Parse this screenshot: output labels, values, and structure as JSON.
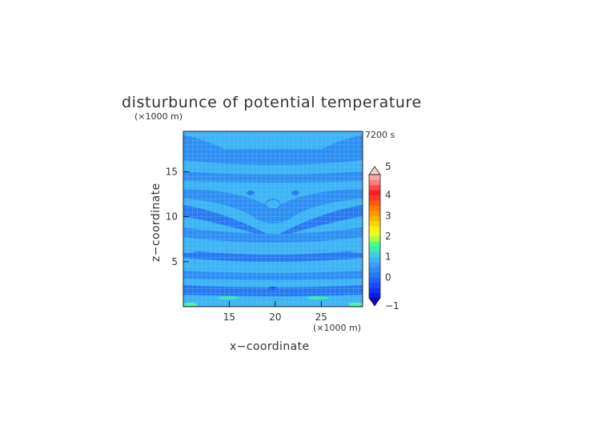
{
  "chart_data": {
    "type": "heatmap",
    "title": "disturbunce of potential temperature",
    "time_label": "7200 s",
    "xlabel": "x−coordinate",
    "ylabel": "z−coordinate",
    "x_unit": "(×1000 m)",
    "y_unit": "(×1000 m)",
    "xlim": [
      10,
      29.5
    ],
    "ylim": [
      0,
      19.5
    ],
    "x_ticks": [
      15,
      20,
      25
    ],
    "y_ticks": [
      5,
      10,
      15
    ],
    "colorbar": {
      "range": [
        -1,
        5
      ],
      "step": 0.25,
      "tick_values": [
        -1,
        0,
        1,
        2,
        3,
        4,
        5
      ],
      "tick_labels": [
        "−1",
        "0",
        "1",
        "2",
        "3",
        "4",
        "5"
      ],
      "colors": [
        "#0a1aff",
        "#1530ff",
        "#1e4bff",
        "#2260ff",
        "#2878f0",
        "#2d8ef2",
        "#3aa0f5",
        "#3db4f5",
        "#3ecfe0",
        "#3ee8b8",
        "#4aff8a",
        "#a8ff40",
        "#e6ff24",
        "#fff200",
        "#ffd400",
        "#ffb400",
        "#ff9800",
        "#ff7c00",
        "#ff5a10",
        "#ff3a20",
        "#ff1e1e",
        "#ff4a4a",
        "#ff7a7a",
        "#ffa6a6"
      ]
    },
    "field": {
      "background_level": 0.25,
      "dominant_values": [
        -0.25,
        0,
        0.25,
        0.5,
        1.0
      ],
      "dominant_colors": [
        "#2a6fe8",
        "#3288ee",
        "#3aa0f5",
        "#3db4f5",
        "#3ee8b8"
      ]
    },
    "grid": true
  }
}
